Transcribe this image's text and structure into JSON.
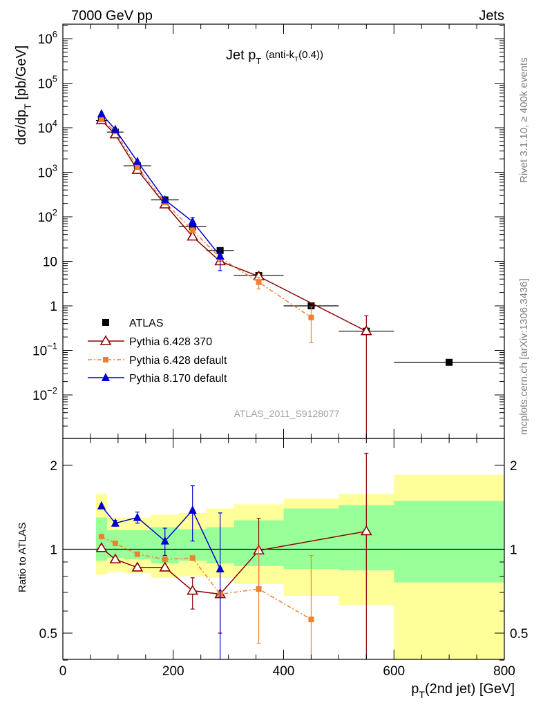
{
  "header": {
    "left": "7000 GeV pp",
    "right": "Jets",
    "title_main": "Jet p",
    "title_sub": "T",
    "title_paren_a": "(anti-k",
    "title_paren_sub": "T",
    "title_paren_b": "(0.4))",
    "analysis_id": "ATLAS_2011_S9128077",
    "side_rivet": "Rivet 3.1.10, ≥ 400k events",
    "side_mcplots": "mcplots.cern.ch [arXiv:1306.3436]"
  },
  "chart_data": [
    {
      "type": "scatter",
      "panel": "main",
      "title": "Jet pT (anti-kT(0.4))",
      "ylabel": "dσ/dp_T [pb/GeV]",
      "yscale": "log",
      "ylim": [
        0.0013,
        2000000
      ],
      "xlim": [
        0,
        800
      ],
      "y_tick_labels": [
        {
          "value": 1000000,
          "base": "10",
          "exp": "6"
        },
        {
          "value": 100000,
          "base": "10",
          "exp": "5"
        },
        {
          "value": 10000,
          "base": "10",
          "exp": "4"
        },
        {
          "value": 1000,
          "base": "10",
          "exp": "3"
        },
        {
          "value": 100,
          "base": "10",
          "exp": "2"
        },
        {
          "value": 10,
          "base": "10",
          "exp": ""
        },
        {
          "value": 1,
          "base": "1",
          "exp": ""
        },
        {
          "value": 0.1,
          "base": "10",
          "exp": "−1"
        },
        {
          "value": 0.01,
          "base": "10",
          "exp": "−2"
        }
      ],
      "legend_position": "lower-left",
      "series": [
        {
          "name": "ATLAS",
          "style": "data",
          "color": "#000000",
          "marker": "square",
          "x": [
            70,
            95,
            135,
            185,
            235,
            285,
            355,
            450,
            550,
            700
          ],
          "y": [
            14500,
            8000,
            1400,
            240,
            60,
            17.5,
            4.8,
            1.0,
            0.27,
            0.054
          ],
          "xerr": [
            10,
            15,
            25,
            25,
            25,
            25,
            45,
            50,
            50,
            100
          ]
        },
        {
          "name": "Pythia 6.428 370",
          "style": "line",
          "color": "#8b0000",
          "marker": "open-triangle",
          "x": [
            70,
            95,
            135,
            185,
            235,
            285,
            355,
            550
          ],
          "y": [
            14700,
            7100,
            1130,
            190,
            36,
            10,
            4.6,
            0.27
          ],
          "yerr_low": [
            0,
            0,
            0,
            0,
            0,
            0,
            0.6,
            0.27
          ],
          "yerr_high": [
            0,
            0,
            0,
            0,
            0,
            0,
            0.6,
            0.33
          ]
        },
        {
          "name": "Pythia 6.428 default",
          "style": "dashdot",
          "color": "#f08030",
          "marker": "square",
          "x": [
            70,
            95,
            135,
            185,
            235,
            285,
            355,
            450
          ],
          "y": [
            15300,
            8300,
            1300,
            210,
            50,
            12,
            3.4,
            0.55
          ],
          "yerr_low": [
            0,
            0,
            0,
            0,
            5,
            2,
            1.0,
            0.4
          ],
          "yerr_high": [
            0,
            0,
            0,
            0,
            5,
            2,
            1.0,
            0.4
          ]
        },
        {
          "name": "Pythia 8.170 default",
          "style": "line",
          "color": "#0000cc",
          "marker": "filled-triangle",
          "x": [
            70,
            95,
            135,
            185,
            235,
            285
          ],
          "y": [
            20500,
            9100,
            1750,
            240,
            78,
            13.2
          ],
          "yerr_low": [
            0,
            0,
            0,
            0,
            18,
            7
          ],
          "yerr_high": [
            0,
            0,
            0,
            0,
            18,
            7
          ]
        }
      ]
    },
    {
      "type": "scatter",
      "panel": "ratio",
      "ylabel": "Ratio to ATLAS",
      "xlabel": "p_T(2nd jet) [GeV]",
      "xlim": [
        0,
        800
      ],
      "ylim": [
        0.35,
        2.35
      ],
      "yscale": "log",
      "x_tick_labels": [
        "0",
        "200",
        "400",
        "600",
        "800"
      ],
      "x_ticks": [
        0,
        200,
        400,
        600,
        800
      ],
      "y_tick_labels": [
        "0.5",
        "1",
        "2"
      ],
      "y_ticks": [
        0.5,
        1,
        2
      ],
      "uncertainty_bands": {
        "bins": [
          [
            60,
            80
          ],
          [
            80,
            110
          ],
          [
            110,
            160
          ],
          [
            160,
            210
          ],
          [
            210,
            260
          ],
          [
            260,
            310
          ],
          [
            310,
            400
          ],
          [
            400,
            500
          ],
          [
            500,
            600
          ],
          [
            600,
            800
          ]
        ],
        "stat_low": [
          0.91,
          0.93,
          0.92,
          0.89,
          0.91,
          0.89,
          0.87,
          0.85,
          0.84,
          0.76
        ],
        "stat_high": [
          1.3,
          1.17,
          1.17,
          1.2,
          1.18,
          1.2,
          1.27,
          1.4,
          1.44,
          1.49
        ],
        "total_low": [
          0.81,
          0.83,
          0.82,
          0.79,
          0.8,
          0.79,
          0.75,
          0.68,
          0.63,
          0.4
        ],
        "total_high": [
          1.58,
          1.3,
          1.3,
          1.33,
          1.35,
          1.4,
          1.45,
          1.52,
          1.58,
          1.85
        ],
        "stat_color": "#99ff99",
        "total_color": "#ffff99"
      },
      "series": [
        {
          "name": "Pythia 6.428 370",
          "color": "#8b0000",
          "x": [
            70,
            95,
            135,
            185,
            235,
            285,
            355,
            550
          ],
          "y": [
            1.01,
            0.92,
            0.86,
            0.86,
            0.71,
            0.69,
            0.99,
            1.16
          ],
          "yerr_low": [
            0,
            0,
            0,
            0,
            0.1,
            0.19,
            0.27,
            1.15
          ],
          "yerr_high": [
            0,
            0,
            0,
            0,
            0.08,
            0,
            0.3,
            1.05
          ]
        },
        {
          "name": "Pythia 6.428 default",
          "color": "#f08030",
          "x": [
            70,
            95,
            135,
            185,
            235,
            285,
            355,
            450
          ],
          "y": [
            1.11,
            1.05,
            0.96,
            0.92,
            0.93,
            0.69,
            0.72,
            0.56
          ],
          "yerr_low": [
            0,
            0,
            0,
            0,
            0,
            0,
            0.26,
            0.22
          ],
          "yerr_high": [
            0,
            0,
            0,
            0,
            0,
            0,
            0.3,
            0.39
          ]
        },
        {
          "name": "Pythia 8.170 default",
          "color": "#0000cc",
          "x": [
            70,
            95,
            135,
            185,
            235,
            285
          ],
          "y": [
            1.43,
            1.24,
            1.3,
            1.07,
            1.38,
            0.85
          ],
          "yerr_low": [
            0,
            0.03,
            0.06,
            0.12,
            0.31,
            0.55
          ],
          "yerr_high": [
            0,
            0.03,
            0.06,
            0.12,
            0.31,
            0.5
          ]
        }
      ]
    }
  ]
}
